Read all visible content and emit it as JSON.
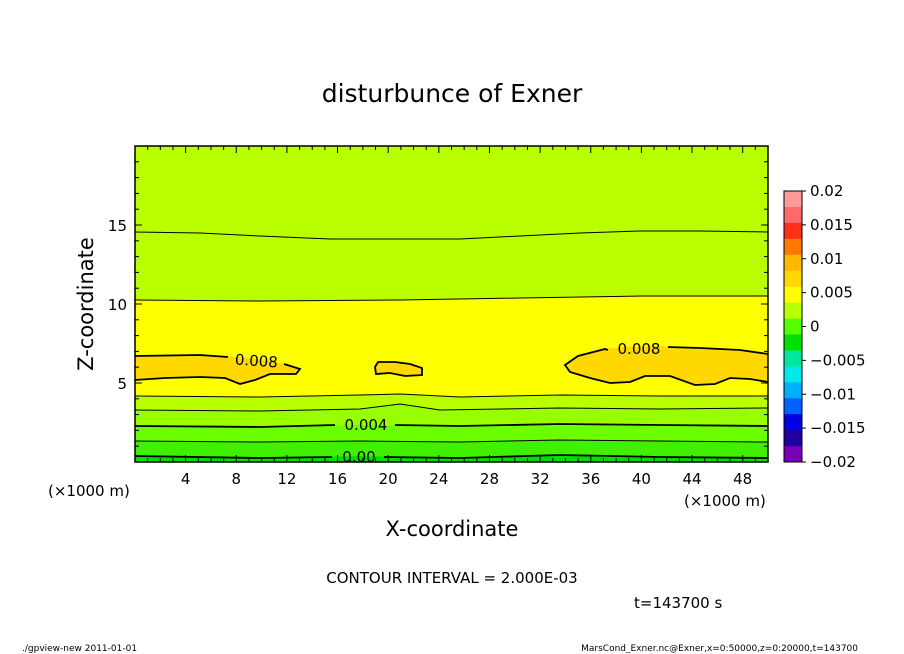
{
  "chart_data": {
    "type": "contour",
    "title": "disturbunce of Exner",
    "xlabel": "X-coordinate",
    "ylabel": "Z-coordinate",
    "x_unit": "(×1000 m)",
    "y_unit": "(×1000 m)",
    "xlim": [
      0,
      50
    ],
    "ylim": [
      0,
      20
    ],
    "x_ticks": [
      4,
      8,
      12,
      16,
      20,
      24,
      28,
      32,
      36,
      40,
      44,
      48
    ],
    "y_ticks": [
      5,
      10,
      15
    ],
    "contour_interval_text": "CONTOUR INTERVAL = 2.000E-03",
    "time_text": "t=143700 s",
    "colorbar": {
      "ticks": [
        "0.02",
        "0.015",
        "0.01",
        "0.005",
        "0",
        "−0.005",
        "−0.01",
        "−0.015",
        "−0.02"
      ],
      "colors": [
        "#ff9a9a",
        "#ff6a6a",
        "#ff3018",
        "#ff7800",
        "#ffb800",
        "#ffd800",
        "#ffff00",
        "#baff00",
        "#55ff00",
        "#00e000",
        "#00e8a0",
        "#00e8e8",
        "#00b0ff",
        "#0060ff",
        "#0000e0",
        "#2000a0",
        "#7800b8"
      ]
    },
    "contour_labels": [
      {
        "text": "0.008",
        "x": 10,
        "z": 6.2
      },
      {
        "text": "0.008",
        "x": 39,
        "z": 7.0
      },
      {
        "text": "0.004",
        "x": 21,
        "z": 2.3
      },
      {
        "text": "0.00",
        "x": 21,
        "z": 0.3
      }
    ],
    "levels": [
      {
        "value": 0.008,
        "region": "x 0–13, z 4.9–6.7"
      },
      {
        "value": 0.008,
        "region": "x 18.5–22.7, z 5.4–6.4"
      },
      {
        "value": 0.008,
        "region": "x 33.5–50, z 4.9–7.3"
      },
      {
        "value": 0.006,
        "region": "z 0.9–14.5"
      },
      {
        "value": 0.004,
        "region": "z ≈ 2.3"
      },
      {
        "value": 0.002,
        "region": "z ≈ 1.1"
      },
      {
        "value": 0.0,
        "region": "z ≈ 0.2"
      }
    ]
  },
  "footer": {
    "left": "./gpview-new 2011-01-01",
    "right": "MarsCond_Exner.nc@Exner,x=0:50000,z=0:20000,t=143700"
  }
}
